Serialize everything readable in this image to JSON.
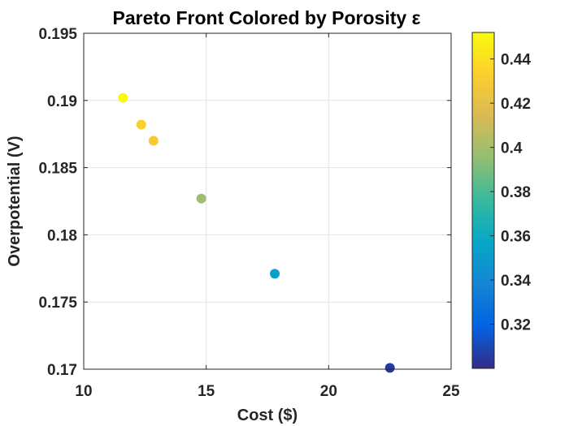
{
  "chart_data": {
    "type": "scatter",
    "title": "Pareto Front Colored by Porosity ε",
    "xlabel": "Cost ($)",
    "ylabel": "Overpotential (V)",
    "xlim": [
      10,
      25
    ],
    "ylim": [
      0.17,
      0.195
    ],
    "xticks": [
      10,
      15,
      20,
      25
    ],
    "xtick_labels": [
      "10",
      "15",
      "20",
      "25"
    ],
    "yticks": [
      0.17,
      0.175,
      0.18,
      0.185,
      0.19,
      0.195
    ],
    "ytick_labels": [
      "0.17",
      "0.175",
      "0.18",
      "0.185",
      "0.19",
      "0.195"
    ],
    "grid": true,
    "colormap": "parula",
    "colorbar": {
      "limits": [
        0.3,
        0.452
      ],
      "ticks": [
        0.32,
        0.34,
        0.36,
        0.38,
        0.4,
        0.42,
        0.44
      ],
      "tick_labels": [
        "0.32",
        "0.34",
        "0.36",
        "0.38",
        "0.4",
        "0.42",
        "0.44"
      ]
    },
    "points": [
      {
        "x": 11.6,
        "y": 0.1902,
        "porosity": 0.451
      },
      {
        "x": 12.35,
        "y": 0.1882,
        "porosity": 0.434
      },
      {
        "x": 12.85,
        "y": 0.187,
        "porosity": 0.429
      },
      {
        "x": 14.8,
        "y": 0.1827,
        "porosity": 0.398
      },
      {
        "x": 17.8,
        "y": 0.1771,
        "porosity": 0.353
      },
      {
        "x": 22.5,
        "y": 0.1701,
        "porosity": 0.305
      }
    ]
  }
}
